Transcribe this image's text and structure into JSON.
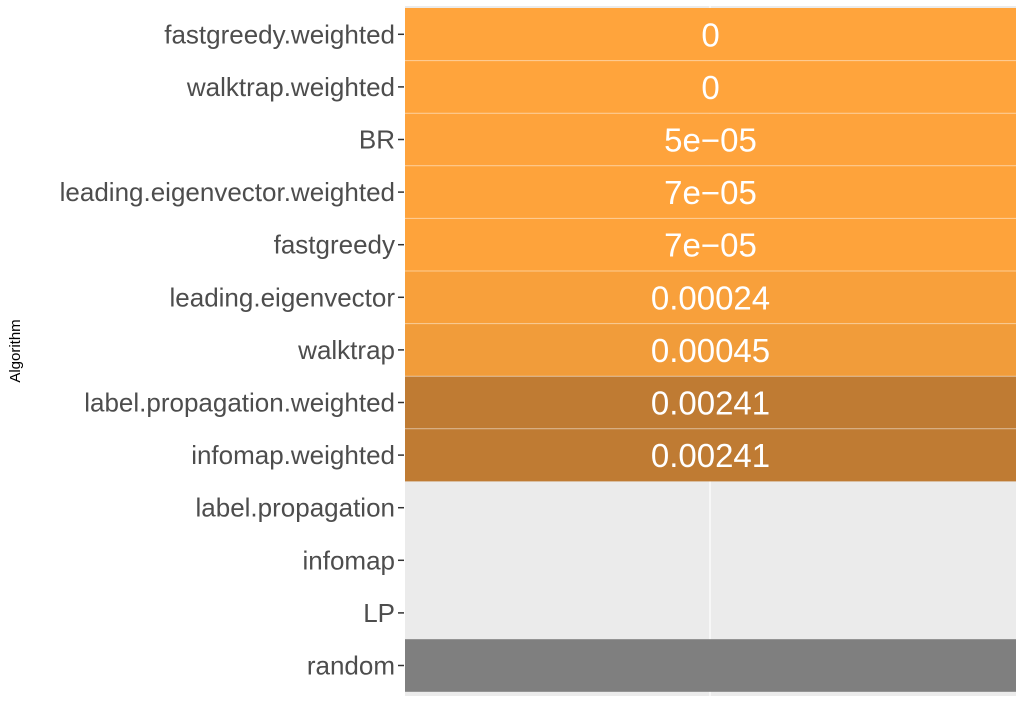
{
  "chart_data": {
    "type": "table",
    "ylabel": "Algorithm",
    "categories": [
      "fastgreedy.weighted",
      "walktrap.weighted",
      "BR",
      "leading.eigenvector.weighted",
      "fastgreedy",
      "leading.eigenvector",
      "walktrap",
      "label.propagation.weighted",
      "infomap.weighted",
      "label.propagation",
      "infomap",
      "LP",
      "random"
    ],
    "cells": [
      {
        "label": "0",
        "value": 0,
        "color": "#ffa43c"
      },
      {
        "label": "0",
        "value": 0,
        "color": "#ffa43c"
      },
      {
        "label": "5e−05",
        "value": 5e-05,
        "color": "#fea33c"
      },
      {
        "label": "7e−05",
        "value": 7e-05,
        "color": "#fea33b"
      },
      {
        "label": "7e−05",
        "value": 7e-05,
        "color": "#fea33b"
      },
      {
        "label": "0.00024",
        "value": 0.00024,
        "color": "#f8a03b"
      },
      {
        "label": "0.00045",
        "value": 0.00045,
        "color": "#f19c3a"
      },
      {
        "label": "0.00241",
        "value": 0.00241,
        "color": "#bf7b33"
      },
      {
        "label": "0.00241",
        "value": 0.00241,
        "color": "#bf7b33"
      },
      {
        "label": "",
        "value": null,
        "color": null
      },
      {
        "label": "",
        "value": null,
        "color": null
      },
      {
        "label": "",
        "value": null,
        "color": null
      },
      {
        "label": "",
        "value": null,
        "color": "#7f7f7f"
      }
    ],
    "grid": true,
    "panel_background": "#ebebeb"
  }
}
